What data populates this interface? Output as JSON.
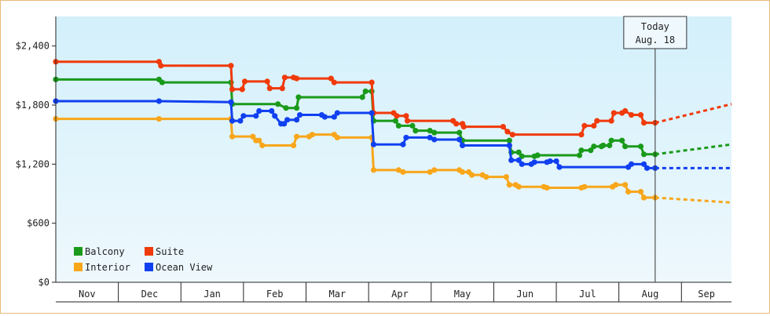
{
  "chart_data": {
    "type": "line",
    "title": "",
    "xlabel": "",
    "ylabel": "",
    "ylim": [
      0,
      2700
    ],
    "y_ticks": [
      "$0",
      "$600",
      "$1,200",
      "$1,800",
      "$2,400"
    ],
    "y_tick_values": [
      0,
      600,
      1200,
      1800,
      2400
    ],
    "x_categories": [
      "Nov",
      "Dec",
      "Jan",
      "Feb",
      "Mar",
      "Apr",
      "May",
      "Jun",
      "Jul",
      "Aug",
      "Sep"
    ],
    "x_range": [
      0,
      10.8
    ],
    "x_unit": "months from November",
    "grid": false,
    "background": [
      "#d3f0fb",
      "#eef8fd"
    ],
    "marker_line": {
      "label_line1": "Today",
      "label_line2": "Aug. 18",
      "x": 9.58
    },
    "legend_position": "bottom-left",
    "series": [
      {
        "name": "Balcony",
        "color": "#1a9a1a",
        "points": [
          [
            0.0,
            2060
          ],
          [
            1.65,
            2060
          ],
          [
            1.7,
            2030
          ],
          [
            2.8,
            2030
          ],
          [
            2.82,
            1810
          ],
          [
            3.55,
            1810
          ],
          [
            3.68,
            1770
          ],
          [
            3.85,
            1770
          ],
          [
            3.88,
            1880
          ],
          [
            4.9,
            1880
          ],
          [
            4.95,
            1940
          ],
          [
            5.05,
            1940
          ],
          [
            5.08,
            1640
          ],
          [
            5.43,
            1640
          ],
          [
            5.48,
            1590
          ],
          [
            5.7,
            1590
          ],
          [
            5.75,
            1540
          ],
          [
            5.98,
            1540
          ],
          [
            6.05,
            1520
          ],
          [
            6.45,
            1520
          ],
          [
            6.5,
            1440
          ],
          [
            7.25,
            1440
          ],
          [
            7.28,
            1320
          ],
          [
            7.4,
            1320
          ],
          [
            7.45,
            1280
          ],
          [
            7.65,
            1280
          ],
          [
            7.7,
            1290
          ],
          [
            8.37,
            1290
          ],
          [
            8.4,
            1340
          ],
          [
            8.55,
            1340
          ],
          [
            8.6,
            1380
          ],
          [
            8.72,
            1380
          ],
          [
            8.75,
            1390
          ],
          [
            8.85,
            1390
          ],
          [
            8.88,
            1440
          ],
          [
            9.05,
            1440
          ],
          [
            9.1,
            1380
          ],
          [
            9.35,
            1380
          ],
          [
            9.4,
            1300
          ],
          [
            9.58,
            1300
          ]
        ],
        "forecast": [
          [
            9.58,
            1300
          ],
          [
            10.8,
            1400
          ]
        ]
      },
      {
        "name": "Suite",
        "color": "#f03a0a",
        "points": [
          [
            0.0,
            2240
          ],
          [
            1.65,
            2240
          ],
          [
            1.68,
            2200
          ],
          [
            2.8,
            2200
          ],
          [
            2.82,
            1960
          ],
          [
            2.98,
            1960
          ],
          [
            3.02,
            2040
          ],
          [
            3.38,
            2040
          ],
          [
            3.42,
            1970
          ],
          [
            3.62,
            1970
          ],
          [
            3.66,
            2080
          ],
          [
            3.8,
            2080
          ],
          [
            3.85,
            2070
          ],
          [
            4.4,
            2070
          ],
          [
            4.45,
            2030
          ],
          [
            5.05,
            2030
          ],
          [
            5.08,
            1720
          ],
          [
            5.4,
            1720
          ],
          [
            5.45,
            1690
          ],
          [
            5.6,
            1690
          ],
          [
            5.62,
            1640
          ],
          [
            6.35,
            1640
          ],
          [
            6.4,
            1610
          ],
          [
            6.5,
            1610
          ],
          [
            6.52,
            1580
          ],
          [
            7.15,
            1580
          ],
          [
            7.22,
            1530
          ],
          [
            7.3,
            1500
          ],
          [
            8.4,
            1500
          ],
          [
            8.45,
            1590
          ],
          [
            8.6,
            1590
          ],
          [
            8.65,
            1640
          ],
          [
            8.88,
            1640
          ],
          [
            8.92,
            1720
          ],
          [
            9.05,
            1720
          ],
          [
            9.1,
            1740
          ],
          [
            9.2,
            1700
          ],
          [
            9.35,
            1700
          ],
          [
            9.4,
            1620
          ],
          [
            9.58,
            1620
          ]
        ],
        "forecast": [
          [
            9.58,
            1620
          ],
          [
            10.8,
            1810
          ]
        ]
      },
      {
        "name": "Interior",
        "color": "#f8a61a",
        "points": [
          [
            0.0,
            1660
          ],
          [
            1.65,
            1660
          ],
          [
            2.8,
            1660
          ],
          [
            2.82,
            1480
          ],
          [
            3.15,
            1480
          ],
          [
            3.2,
            1440
          ],
          [
            3.25,
            1440
          ],
          [
            3.3,
            1390
          ],
          [
            3.8,
            1390
          ],
          [
            3.85,
            1480
          ],
          [
            4.05,
            1480
          ],
          [
            4.1,
            1500
          ],
          [
            4.45,
            1500
          ],
          [
            4.5,
            1470
          ],
          [
            5.05,
            1470
          ],
          [
            5.08,
            1140
          ],
          [
            5.48,
            1140
          ],
          [
            5.55,
            1120
          ],
          [
            5.98,
            1120
          ],
          [
            6.05,
            1140
          ],
          [
            6.45,
            1140
          ],
          [
            6.5,
            1120
          ],
          [
            6.6,
            1120
          ],
          [
            6.65,
            1090
          ],
          [
            6.82,
            1090
          ],
          [
            6.88,
            1070
          ],
          [
            7.2,
            1070
          ],
          [
            7.25,
            990
          ],
          [
            7.35,
            990
          ],
          [
            7.4,
            970
          ],
          [
            7.8,
            970
          ],
          [
            7.85,
            960
          ],
          [
            8.4,
            960
          ],
          [
            8.45,
            970
          ],
          [
            8.9,
            970
          ],
          [
            8.95,
            990
          ],
          [
            9.1,
            990
          ],
          [
            9.15,
            920
          ],
          [
            9.35,
            920
          ],
          [
            9.4,
            860
          ],
          [
            9.58,
            860
          ]
        ],
        "forecast": [
          [
            9.58,
            860
          ],
          [
            10.8,
            810
          ]
        ]
      },
      {
        "name": "Ocean View",
        "color": "#1040f0",
        "points": [
          [
            0.0,
            1840
          ],
          [
            1.65,
            1840
          ],
          [
            2.8,
            1830
          ],
          [
            2.82,
            1640
          ],
          [
            2.95,
            1640
          ],
          [
            3.0,
            1690
          ],
          [
            3.2,
            1690
          ],
          [
            3.25,
            1740
          ],
          [
            3.45,
            1740
          ],
          [
            3.5,
            1690
          ],
          [
            3.6,
            1610
          ],
          [
            3.65,
            1610
          ],
          [
            3.7,
            1650
          ],
          [
            3.85,
            1650
          ],
          [
            3.9,
            1700
          ],
          [
            4.25,
            1700
          ],
          [
            4.3,
            1680
          ],
          [
            4.45,
            1680
          ],
          [
            4.5,
            1720
          ],
          [
            5.05,
            1720
          ],
          [
            5.08,
            1400
          ],
          [
            5.55,
            1400
          ],
          [
            5.6,
            1470
          ],
          [
            5.98,
            1470
          ],
          [
            6.05,
            1450
          ],
          [
            6.45,
            1450
          ],
          [
            6.5,
            1390
          ],
          [
            7.25,
            1390
          ],
          [
            7.28,
            1240
          ],
          [
            7.4,
            1240
          ],
          [
            7.45,
            1200
          ],
          [
            7.6,
            1200
          ],
          [
            7.65,
            1220
          ],
          [
            7.85,
            1220
          ],
          [
            7.9,
            1230
          ],
          [
            8.0,
            1230
          ],
          [
            8.05,
            1170
          ],
          [
            9.15,
            1170
          ],
          [
            9.2,
            1200
          ],
          [
            9.4,
            1200
          ],
          [
            9.45,
            1160
          ],
          [
            9.58,
            1160
          ]
        ],
        "forecast": [
          [
            9.58,
            1160
          ],
          [
            10.8,
            1160
          ]
        ]
      }
    ]
  }
}
